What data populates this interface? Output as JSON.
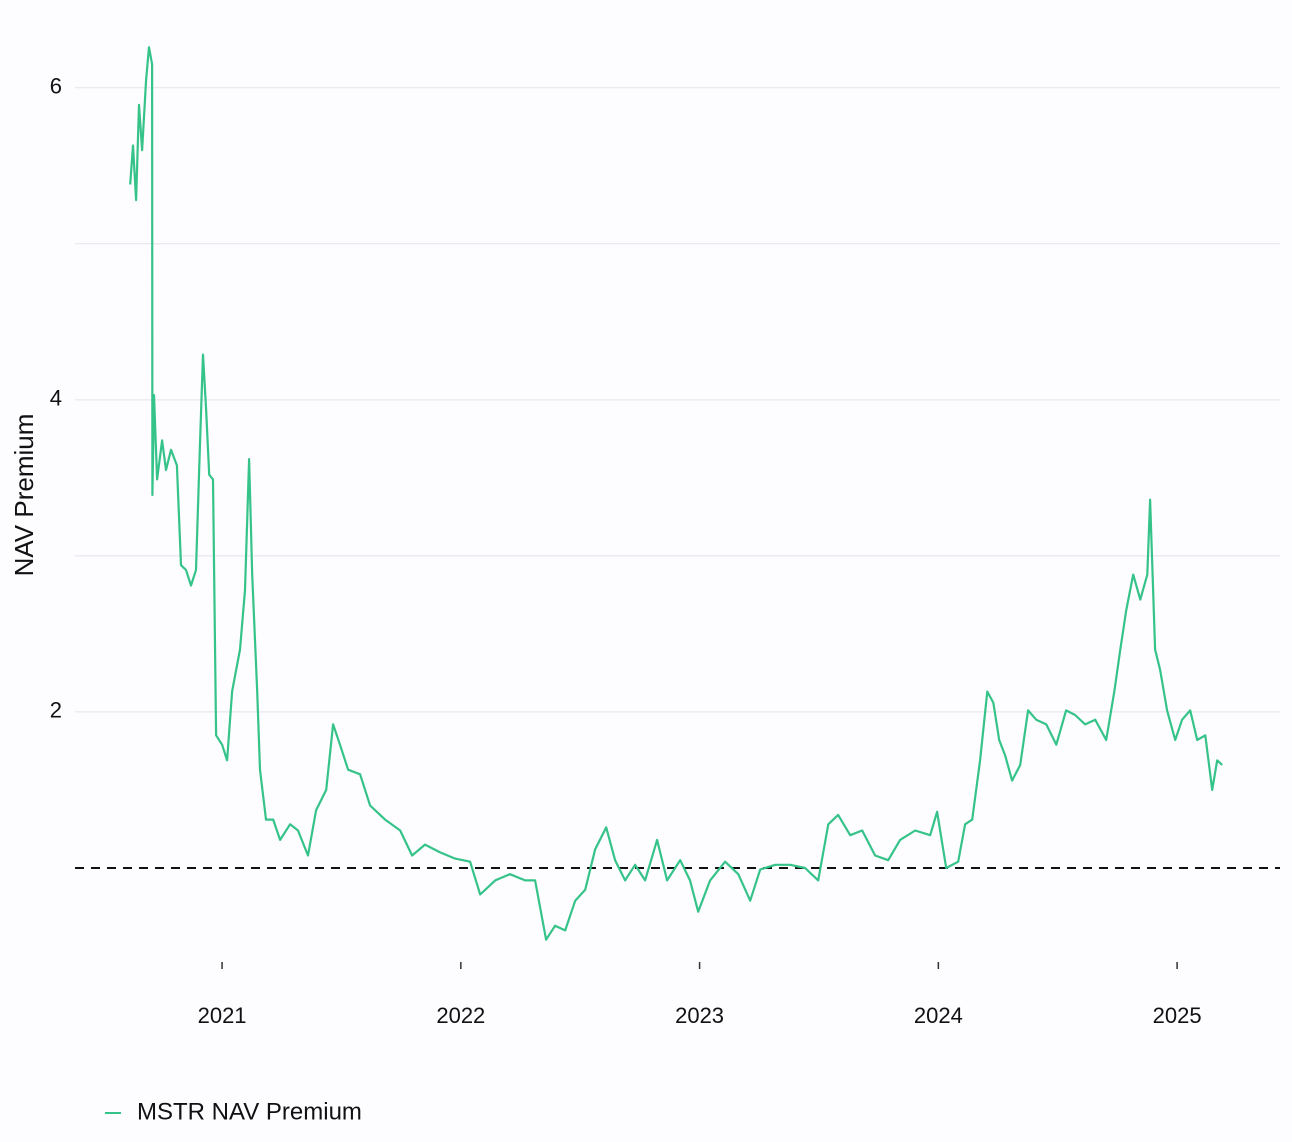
{
  "chart_data": {
    "type": "line",
    "y_label": "NAV Premium",
    "x": [
      2020.615,
      2020.627,
      2020.64,
      2020.652,
      2020.665,
      2020.682,
      2020.694,
      2020.707,
      2020.708,
      2020.715,
      2020.728,
      2020.749,
      2020.765,
      2020.786,
      2020.811,
      2020.828,
      2020.849,
      2020.87,
      2020.891,
      2020.908,
      2020.92,
      2020.933,
      2020.946,
      2020.962,
      2020.975,
      2021.0,
      2021.021,
      2021.042,
      2021.075,
      2021.096,
      2021.113,
      2021.126,
      2021.147,
      2021.159,
      2021.184,
      2021.214,
      2021.243,
      2021.285,
      2021.318,
      2021.36,
      2021.394,
      2021.436,
      2021.465,
      2021.494,
      2021.528,
      2021.578,
      2021.62,
      2021.683,
      2021.746,
      2021.796,
      2021.85,
      2021.913,
      2021.976,
      2022.039,
      2022.081,
      2022.144,
      2022.206,
      2022.269,
      2022.311,
      2022.357,
      2022.395,
      2022.437,
      2022.479,
      2022.521,
      2022.563,
      2022.609,
      2022.646,
      2022.688,
      2022.73,
      2022.772,
      2022.822,
      2022.864,
      2022.919,
      2022.96,
      2022.994,
      2023.044,
      2023.107,
      2023.162,
      2023.212,
      2023.254,
      2023.317,
      2023.379,
      2023.442,
      2023.497,
      2023.539,
      2023.58,
      2023.631,
      2023.681,
      2023.735,
      2023.79,
      2023.84,
      2023.903,
      2023.966,
      2023.995,
      2024.033,
      2024.083,
      2024.112,
      2024.142,
      2024.175,
      2024.205,
      2024.23,
      2024.255,
      2024.28,
      2024.309,
      2024.343,
      2024.376,
      2024.41,
      2024.452,
      2024.494,
      2024.535,
      2024.573,
      2024.615,
      2024.657,
      2024.703,
      2024.737,
      2024.762,
      2024.787,
      2024.816,
      2024.846,
      2024.875,
      2024.887,
      2024.908,
      2024.929,
      2024.958,
      2024.992,
      2025.021,
      2025.055,
      2025.084,
      2025.118,
      2025.147,
      2025.168,
      2025.189
    ],
    "series": [
      {
        "name": "MSTR NAV Premium",
        "color": "#35c389",
        "values": [
          5.38,
          5.63,
          5.28,
          5.89,
          5.6,
          6.05,
          6.26,
          6.15,
          3.39,
          4.03,
          3.49,
          3.74,
          3.55,
          3.68,
          3.58,
          2.94,
          2.91,
          2.81,
          2.91,
          3.74,
          4.29,
          3.94,
          3.52,
          3.49,
          1.85,
          1.79,
          1.69,
          2.13,
          2.4,
          2.78,
          3.62,
          2.88,
          2.13,
          1.63,
          1.31,
          1.31,
          1.18,
          1.28,
          1.24,
          1.08,
          1.37,
          1.5,
          1.92,
          1.79,
          1.63,
          1.6,
          1.4,
          1.31,
          1.24,
          1.08,
          1.15,
          1.1,
          1.06,
          1.04,
          0.83,
          0.92,
          0.96,
          0.92,
          0.92,
          0.54,
          0.63,
          0.6,
          0.79,
          0.86,
          1.12,
          1.26,
          1.05,
          0.92,
          1.02,
          0.92,
          1.18,
          0.92,
          1.05,
          0.92,
          0.72,
          0.92,
          1.04,
          0.96,
          0.79,
          0.99,
          1.02,
          1.02,
          1.0,
          0.92,
          1.28,
          1.34,
          1.21,
          1.24,
          1.08,
          1.05,
          1.18,
          1.24,
          1.21,
          1.36,
          1.0,
          1.04,
          1.28,
          1.31,
          1.69,
          2.13,
          2.06,
          1.82,
          1.72,
          1.56,
          1.66,
          2.01,
          1.95,
          1.92,
          1.79,
          2.01,
          1.98,
          1.92,
          1.95,
          1.82,
          2.13,
          2.4,
          2.65,
          2.88,
          2.72,
          2.88,
          3.36,
          2.4,
          2.27,
          2.01,
          1.82,
          1.95,
          2.01,
          1.82,
          1.85,
          1.5,
          1.69,
          1.66
        ]
      }
    ],
    "xlim": [
      2020.384,
      2025.431
    ],
    "xticks": [
      2021,
      2022,
      2023,
      2024,
      2025
    ],
    "ylim": [
      0.25,
      6.37
    ],
    "yticks": [
      2,
      4,
      6
    ],
    "y_minor_grid": [
      3,
      5
    ],
    "grid": true,
    "hline": 1,
    "legend": "bottom-left"
  }
}
